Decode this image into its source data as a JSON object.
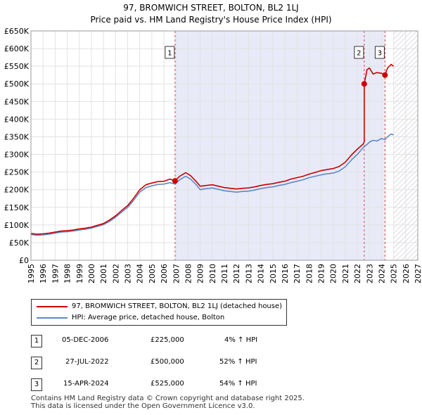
{
  "chart_data": {
    "type": "line",
    "title": "97, BROMWICH STREET, BOLTON, BL2 1LJ",
    "subtitle": "Price paid vs. HM Land Registry's House Price Index (HPI)",
    "xlabel": "",
    "ylabel": "",
    "xlim": [
      1995,
      2027
    ],
    "ylim": [
      0,
      650000
    ],
    "x_ticks": [
      "1995",
      "1996",
      "1997",
      "1998",
      "1999",
      "2000",
      "2001",
      "2002",
      "2003",
      "2004",
      "2005",
      "2006",
      "2007",
      "2008",
      "2009",
      "2010",
      "2011",
      "2012",
      "2013",
      "2014",
      "2015",
      "2016",
      "2017",
      "2018",
      "2019",
      "2020",
      "2021",
      "2022",
      "2023",
      "2024",
      "2025",
      "2026",
      "2027"
    ],
    "y_ticks": [
      {
        "value": 0,
        "label": "£0"
      },
      {
        "value": 50000,
        "label": "£50K"
      },
      {
        "value": 100000,
        "label": "£100K"
      },
      {
        "value": 150000,
        "label": "£150K"
      },
      {
        "value": 200000,
        "label": "£200K"
      },
      {
        "value": 250000,
        "label": "£250K"
      },
      {
        "value": 300000,
        "label": "£300K"
      },
      {
        "value": 350000,
        "label": "£350K"
      },
      {
        "value": 400000,
        "label": "£400K"
      },
      {
        "value": 450000,
        "label": "£450K"
      },
      {
        "value": 500000,
        "label": "£500K"
      },
      {
        "value": 550000,
        "label": "£550K"
      },
      {
        "value": 600000,
        "label": "£600K"
      },
      {
        "value": 650000,
        "label": "£650K"
      }
    ],
    "grid": true,
    "shaded_range": [
      2006.92,
      2024.29
    ],
    "forecast_hatch_from": 2025.0,
    "series": [
      {
        "name": "97, BROMWICH STREET, BOLTON, BL2 1LJ (detached house)",
        "color": "#cc0000",
        "x": [
          1995.0,
          1995.5,
          1996.0,
          1996.5,
          1997.0,
          1997.5,
          1998.0,
          1998.5,
          1999.0,
          1999.5,
          2000.0,
          2000.5,
          2001.0,
          2001.5,
          2002.0,
          2002.5,
          2003.0,
          2003.5,
          2004.0,
          2004.5,
          2005.0,
          2005.5,
          2006.0,
          2006.5,
          2006.92,
          2007.3,
          2007.8,
          2008.2,
          2008.7,
          2009.0,
          2009.5,
          2010.0,
          2010.5,
          2011.0,
          2011.5,
          2012.0,
          2012.5,
          2013.0,
          2013.5,
          2014.0,
          2014.5,
          2015.0,
          2015.5,
          2016.0,
          2016.5,
          2017.0,
          2017.5,
          2018.0,
          2018.5,
          2019.0,
          2019.5,
          2020.0,
          2020.5,
          2021.0,
          2021.5,
          2022.0,
          2022.5,
          2022.57,
          2022.57,
          2022.8,
          2023.0,
          2023.3,
          2023.6,
          2024.0,
          2024.29,
          2024.5,
          2024.8,
          2025.0
        ],
        "y": [
          76000,
          74000,
          75000,
          77000,
          80000,
          83000,
          84000,
          86000,
          89000,
          91000,
          94000,
          99000,
          104000,
          114000,
          126000,
          141000,
          155000,
          176000,
          200000,
          214000,
          219000,
          223000,
          224000,
          230000,
          225000,
          238000,
          248000,
          240000,
          222000,
          210000,
          212000,
          214000,
          210000,
          206000,
          204000,
          202000,
          204000,
          205000,
          208000,
          212000,
          215000,
          217000,
          221000,
          224000,
          230000,
          234000,
          238000,
          244000,
          249000,
          254000,
          257000,
          260000,
          266000,
          278000,
          298000,
          315000,
          330000,
          337000,
          500000,
          540000,
          545000,
          528000,
          532000,
          530000,
          525000,
          545000,
          555000,
          550000
        ]
      },
      {
        "name": "HPI: Average price, detached house, Bolton",
        "color": "#5b8ac9",
        "x": [
          1995.0,
          1995.5,
          1996.0,
          1996.5,
          1997.0,
          1997.5,
          1998.0,
          1998.5,
          1999.0,
          1999.5,
          2000.0,
          2000.5,
          2001.0,
          2001.5,
          2002.0,
          2002.5,
          2003.0,
          2003.5,
          2004.0,
          2004.5,
          2005.0,
          2005.5,
          2006.0,
          2006.5,
          2006.92,
          2007.3,
          2007.8,
          2008.2,
          2008.7,
          2009.0,
          2009.5,
          2010.0,
          2010.5,
          2011.0,
          2011.5,
          2012.0,
          2012.5,
          2013.0,
          2013.5,
          2014.0,
          2014.5,
          2015.0,
          2015.5,
          2016.0,
          2016.5,
          2017.0,
          2017.5,
          2018.0,
          2018.5,
          2019.0,
          2019.5,
          2020.0,
          2020.5,
          2021.0,
          2021.5,
          2022.0,
          2022.5,
          2022.8,
          2023.0,
          2023.3,
          2023.6,
          2024.0,
          2024.29,
          2024.5,
          2024.8,
          2025.0
        ],
        "y": [
          73000,
          71000,
          72000,
          74000,
          77000,
          80000,
          81000,
          83000,
          86000,
          88000,
          91000,
          96000,
          101000,
          110000,
          122000,
          136000,
          150000,
          170000,
          193000,
          206000,
          211000,
          215000,
          216000,
          220000,
          216000,
          228000,
          238000,
          230000,
          213000,
          200000,
          203000,
          205000,
          201000,
          197000,
          195000,
          193000,
          195000,
          196000,
          199000,
          203000,
          206000,
          208000,
          212000,
          215000,
          220000,
          224000,
          228000,
          234000,
          238000,
          242000,
          245000,
          247000,
          253000,
          265000,
          284000,
          300000,
          320000,
          328000,
          335000,
          340000,
          338000,
          345000,
          342000,
          350000,
          358000,
          355000
        ]
      }
    ],
    "annotations": [
      {
        "label": "1",
        "x": 2006.92,
        "y": 225000
      },
      {
        "label": "2",
        "x": 2022.57,
        "y": 500000
      },
      {
        "label": "3",
        "x": 2024.29,
        "y": 525000
      }
    ]
  },
  "legend": {
    "property_label": "97, BROMWICH STREET, BOLTON, BL2 1LJ (detached house)",
    "hpi_label": "HPI: Average price, detached house, Bolton",
    "property_color": "#cc0000",
    "hpi_color": "#5b8ac9"
  },
  "transactions": [
    {
      "num": "1",
      "date": "05-DEC-2006",
      "price": "£225,000",
      "hpi": "4% ↑ HPI"
    },
    {
      "num": "2",
      "date": "27-JUL-2022",
      "price": "£500,000",
      "hpi": "52% ↑ HPI"
    },
    {
      "num": "3",
      "date": "15-APR-2024",
      "price": "£525,000",
      "hpi": "54% ↑ HPI"
    }
  ],
  "footer": {
    "line1": "Contains HM Land Registry data © Crown copyright and database right 2025.",
    "line2": "This data is licensed under the Open Government Licence v3.0."
  }
}
